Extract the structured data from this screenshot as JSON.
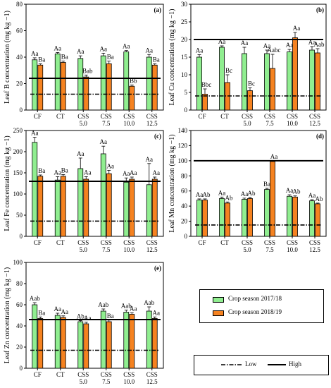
{
  "colors": {
    "season_1": "#90ee90",
    "season_2": "#f58220",
    "axis": "#000000"
  },
  "legend": {
    "series": [
      "Crop season 2017/18",
      "Crop season 2018/19"
    ],
    "lines": [
      "Low",
      "High"
    ]
  },
  "chart_data": [
    {
      "type": "bar",
      "panel": "(a)",
      "ylabel": "Leaf B concentration (mg kg −1)",
      "ylim": [
        0,
        80
      ],
      "yticks": [
        0,
        20,
        40,
        60,
        80
      ],
      "categories": [
        "CF",
        "CT",
        "CSS 5.0",
        "CSS 7.5",
        "CSS 10.0",
        "CSS 12.5"
      ],
      "series": [
        {
          "name": "Crop season 2017/18",
          "values": [
            38,
            42.5,
            39,
            41,
            44,
            40
          ],
          "errors": [
            1.5,
            1,
            2,
            2,
            1,
            2
          ],
          "labels": [
            "Aa",
            "Aa",
            "Aa",
            "Aa",
            "Aa",
            "Aa"
          ]
        },
        {
          "name": "Crop season 2018/19",
          "values": [
            34,
            36,
            25,
            35,
            18,
            34
          ],
          "errors": [
            1,
            1,
            1.5,
            2,
            1,
            1
          ],
          "labels": [
            "Ba",
            "Ba",
            "Bab",
            "Ba",
            "Bb",
            "Ba"
          ]
        }
      ],
      "low_line": 12,
      "high_line": 24,
      "show_xticks": true
    },
    {
      "type": "bar",
      "panel": "(b)",
      "ylabel": "Leaf Cu concentration (mg kg −1)",
      "ylim": [
        0,
        30
      ],
      "yticks": [
        0,
        5,
        10,
        15,
        20,
        25,
        30
      ],
      "categories": [
        "CF",
        "CT",
        "CSS 5.0",
        "CSS 7.5",
        "CSS 10.0",
        "CSS 12.5"
      ],
      "series": [
        {
          "name": "Crop season 2017/18",
          "values": [
            15,
            17.8,
            16,
            16,
            16.5,
            17
          ],
          "errors": [
            0.7,
            0.4,
            1.8,
            1,
            0.7,
            1
          ],
          "labels": [
            "Aa",
            "Aa",
            "Aa",
            "Aa",
            "Aa",
            "Aa"
          ]
        },
        {
          "name": "Crop season 2018/19",
          "values": [
            4.5,
            7.8,
            5.5,
            11.8,
            20.5,
            16.2
          ],
          "errors": [
            1.5,
            2.2,
            0.8,
            4,
            1.5,
            1.2
          ],
          "labels": [
            "Bbc",
            "Bc",
            "Bc",
            "Aabc",
            "Aa",
            "Aab"
          ]
        }
      ],
      "low_line": 4,
      "high_line": 20,
      "show_xticks": true
    },
    {
      "type": "bar",
      "panel": "(c)",
      "ylabel": "Leaf Fe concentration (mg kg −1)",
      "ylim": [
        0,
        250
      ],
      "yticks": [
        0,
        50,
        100,
        150,
        200,
        250
      ],
      "categories": [
        "CF",
        "CT",
        "CSS 5.0",
        "CSS 7.5",
        "CSS 10.0",
        "CSS 12.5"
      ],
      "series": [
        {
          "name": "Crop season 2017/18",
          "values": [
            222,
            133,
            160,
            195,
            128,
            122
          ],
          "errors": [
            12,
            8,
            25,
            18,
            10,
            50
          ],
          "labels": [
            "Aa",
            "Aa",
            "Aa",
            "Aa",
            "Aa",
            "Aa"
          ]
        },
        {
          "name": "Crop season 2018/19",
          "values": [
            142,
            142,
            135,
            148,
            135,
            135
          ],
          "errors": [
            3,
            4,
            6,
            8,
            5,
            5
          ],
          "labels": [
            "Ba",
            "Ba",
            "Aa",
            "Aa",
            "Aa",
            "Aa"
          ]
        }
      ],
      "low_line": 36,
      "high_line": 130,
      "show_xticks": true
    },
    {
      "type": "bar",
      "panel": "(d)",
      "ylabel": "Leaf Mn concentration (mg kg −1)",
      "ylim": [
        0,
        140
      ],
      "yticks": [
        0,
        20,
        40,
        60,
        80,
        100,
        120,
        140
      ],
      "categories": [
        "CF",
        "CT",
        "CSS 5.0",
        "CSS 7.5",
        "CSS 10.0",
        "CSS 12.5"
      ],
      "series": [
        {
          "name": "Crop season 2017/18",
          "values": [
            48,
            50,
            49,
            62,
            53,
            47
          ],
          "errors": [
            1.5,
            2,
            1.5,
            1.5,
            2,
            1.5
          ],
          "labels": [
            "Aa",
            "Aa",
            "Aa",
            "Ba",
            "Aa",
            "Aa"
          ]
        },
        {
          "name": "Crop season 2018/19",
          "values": [
            48,
            44,
            50,
            99,
            52,
            43
          ],
          "errors": [
            1.5,
            1.5,
            1.5,
            1,
            1.5,
            1
          ],
          "labels": [
            "Ab",
            "Ab",
            "Ab",
            "Aa",
            "Ab",
            "Ab"
          ]
        }
      ],
      "low_line": 15,
      "high_line": 100,
      "show_xticks": true
    },
    {
      "type": "bar",
      "panel": "(e)",
      "ylabel": "Leaf Zn concentration (mg kg −1)",
      "ylim": [
        0,
        100
      ],
      "yticks": [
        0,
        20,
        40,
        60,
        80,
        100
      ],
      "categories": [
        "CF",
        "CT",
        "CSS 5.0",
        "CSS 7.5",
        "CSS 10.0",
        "CSS 12.5"
      ],
      "series": [
        {
          "name": "Crop season 2017/18",
          "values": [
            60,
            50,
            44,
            54,
            53,
            54
          ],
          "errors": [
            2,
            2,
            1,
            2,
            2,
            4
          ],
          "labels": [
            "Aab",
            "Aa",
            "Ab",
            "Aab",
            "Aab",
            "Aab"
          ]
        },
        {
          "name": "Crop season 2018/19",
          "values": [
            47,
            48,
            42,
            44,
            51,
            47
          ],
          "errors": [
            1.5,
            1.5,
            1.5,
            1.5,
            1.5,
            1.5
          ],
          "labels": [
            "Ba",
            "Aa",
            "Aa",
            "Ba",
            "Aa",
            "Aa"
          ]
        }
      ],
      "low_line": 17,
      "high_line": 46,
      "show_xticks": true
    }
  ]
}
